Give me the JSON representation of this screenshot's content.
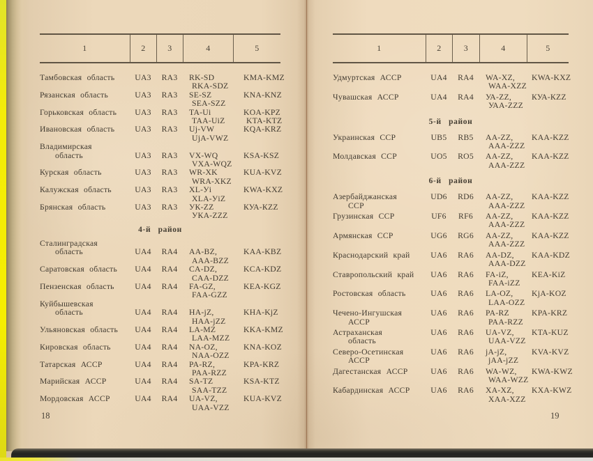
{
  "book": {
    "left_page": {
      "page_number": "18",
      "columns": [
        "1",
        "2",
        "3",
        "4",
        "5"
      ],
      "sections": [
        {
          "title": "",
          "rows": [
            {
              "name": "Тамбовская область",
              "col2": "UA3",
              "col3": "RA3",
              "col4": [
                "RK-SD",
                "RKA-SDZ"
              ],
              "col5": [
                "KMA-KMZ"
              ]
            },
            {
              "name": "Рязанская область",
              "col2": "UA3",
              "col3": "RA3",
              "col4": [
                "SE-SZ",
                "SEA-SZZ"
              ],
              "col5": [
                "KNA-KNZ"
              ]
            },
            {
              "name": "Горьковская область",
              "col2": "UA3",
              "col3": "RA3",
              "col4": [
                "TA-Ui",
                "TAA-UiZ"
              ],
              "col5": [
                "KOA-KPZ",
                "KTA-KTZ"
              ]
            },
            {
              "name": "Ивановская область",
              "col2": "UA3",
              "col3": "RA3",
              "col4": [
                "Uj-VW",
                "UjA-VWZ"
              ],
              "col5": [
                "KQA-KRZ"
              ]
            },
            {
              "name": [
                "Владимирская",
                "область"
              ],
              "values_on_line2": true,
              "col2": "UA3",
              "col3": "RA3",
              "col4": [
                "VX-WQ",
                "VXA-WQZ"
              ],
              "col5": [
                "KSA-KSZ"
              ]
            },
            {
              "name": "Курская область",
              "col2": "UA3",
              "col3": "RA3",
              "col4": [
                "WR-XK",
                "WRA-XKZ"
              ],
              "col5": [
                "KUA-KVZ"
              ]
            },
            {
              "name": "Калужская область",
              "col2": "UA3",
              "col3": "RA3",
              "col4": [
                "XL-Уi",
                "XLA-УiZ"
              ],
              "col5": [
                "KWA-KXZ"
              ]
            },
            {
              "name": "Брянская область",
              "col2": "UA3",
              "col3": "RA3",
              "col4": [
                "УК-ZZ",
                "УКА-ZZZ"
              ],
              "col5": [
                "КУА-КZZ"
              ]
            }
          ]
        },
        {
          "title": "4-й район",
          "rows": [
            {
              "name": [
                "Сталинградская",
                "область"
              ],
              "values_on_line2": true,
              "col2": "UA4",
              "col3": "RA4",
              "col4": [
                "AA-BZ,",
                "AAA-BZZ"
              ],
              "col5": [
                "KAA-KBZ"
              ]
            },
            {
              "name": "Саратовская область",
              "col2": "UA4",
              "col3": "RA4",
              "col4": [
                "CA-DZ,",
                "CAA-DZZ"
              ],
              "col5": [
                "KCA-KDZ"
              ]
            },
            {
              "name": "Пензенская область",
              "col2": "UA4",
              "col3": "RA4",
              "col4": [
                "FA-GZ,",
                "FAA-GZZ"
              ],
              "col5": [
                "KEA-KGZ"
              ]
            },
            {
              "name": [
                "Куйбышевская",
                "область"
              ],
              "values_on_line2": true,
              "col2": "UA4",
              "col3": "RA4",
              "col4": [
                "HA-jZ,",
                "HAA-jZZ"
              ],
              "col5": [
                "KHA-KjZ"
              ]
            },
            {
              "name": "Ульяновская область",
              "col2": "UA4",
              "col3": "RA4",
              "col4": [
                "LA-MZ",
                "LAA-MZZ"
              ],
              "col5": [
                "KKA-KMZ"
              ]
            },
            {
              "name": "Кировская область",
              "col2": "UA4",
              "col3": "RA4",
              "col4": [
                "NA-OZ,",
                "NAA-OZZ"
              ],
              "col5": [
                "KNA-KOZ"
              ]
            },
            {
              "name": "Татарская АССР",
              "col2": "UA4",
              "col3": "RA4",
              "col4": [
                "PA-RZ,",
                "PAA-RZZ"
              ],
              "col5": [
                "KPA-KRZ"
              ]
            },
            {
              "name": "Марийская АССР",
              "col2": "UA4",
              "col3": "RA4",
              "col4": [
                "SA-TZ",
                "SAA-TZZ"
              ],
              "col5": [
                "KSA-KTZ"
              ]
            },
            {
              "name": "Мордовская АССР",
              "col2": "UA4",
              "col3": "RA4",
              "col4": [
                "UA-VZ,",
                "UAA-VZZ"
              ],
              "col5": [
                "KUA-KVZ"
              ]
            }
          ]
        }
      ]
    },
    "right_page": {
      "page_number": "19",
      "columns": [
        "1",
        "2",
        "3",
        "4",
        "5"
      ],
      "sections": [
        {
          "title": "",
          "rows": [
            {
              "name": "Удмуртская АССР",
              "col2": "UA4",
              "col3": "RA4",
              "col4": [
                "WA-XZ,",
                "WAA-XZZ"
              ],
              "col5": [
                "KWA-KXZ"
              ]
            },
            {
              "name": "Чувашская АССР",
              "col2": "UA4",
              "col3": "RA4",
              "col4": [
                "УА-ZZ,",
                "УАА-ZZZ"
              ],
              "col5": [
                "КУА-КZZ"
              ]
            }
          ]
        },
        {
          "title": "5-й район",
          "rows": [
            {
              "name": "Украинская ССР",
              "col2": "UB5",
              "col3": "RB5",
              "col4": [
                "AA-ZZ,",
                "AAA-ZZZ"
              ],
              "col5": [
                "KAA-KZZ"
              ]
            },
            {
              "name": "Молдавская ССР",
              "col2": "UO5",
              "col3": "RO5",
              "col4": [
                "AA-ZZ,",
                "AAA-ZZZ"
              ],
              "col5": [
                "KAA-KZZ"
              ]
            }
          ]
        },
        {
          "title": "6-й район",
          "rows": [
            {
              "name": [
                "Азербайджанская",
                "ССР"
              ],
              "col2": "UD6",
              "col3": "RD6",
              "col4": [
                "AA-ZZ,",
                "AAA-ZZZ"
              ],
              "col5": [
                "KAA-KZZ"
              ]
            },
            {
              "name": "Грузинская ССР",
              "col2": "UF6",
              "col3": "RF6",
              "col4": [
                "AA-ZZ,",
                "AAA-ZZZ"
              ],
              "col5": [
                "KAA-KZZ"
              ]
            },
            {
              "name": "Армянская ССР",
              "col2": "UG6",
              "col3": "RG6",
              "col4": [
                "AA-ZZ,",
                "AAA-ZZZ"
              ],
              "col5": [
                "KAA-KZZ"
              ]
            },
            {
              "name": "Краснодарский край",
              "col2": "UA6",
              "col3": "RA6",
              "col4": [
                "AA-DZ,",
                "AAA-DZZ"
              ],
              "col5": [
                "KAA-KDZ"
              ]
            },
            {
              "name": "Ставропольский край",
              "col2": "UA6",
              "col3": "RA6",
              "col4": [
                "FA-iZ,",
                "FAA-iZZ"
              ],
              "col5": [
                "KEA-KiZ"
              ]
            },
            {
              "name": "Ростовская область",
              "col2": "UA6",
              "col3": "RA6",
              "col4": [
                "LA-OZ,",
                "LAA-OZZ"
              ],
              "col5": [
                "KjA-KOZ"
              ]
            },
            {
              "name": [
                "Чечено-Ингушская",
                "АССР"
              ],
              "col2": "UA6",
              "col3": "RA6",
              "col4": [
                "PA-RZ",
                "PAA-RZZ"
              ],
              "col5": [
                "KPA-KRZ"
              ]
            },
            {
              "name": [
                "Астраханская",
                "область"
              ],
              "col2": "UA6",
              "col3": "RA6",
              "col4": [
                "UA-VZ,",
                "UAA-VZZ"
              ],
              "col5": [
                "KTA-KUZ"
              ]
            },
            {
              "name": [
                "Северо-Осетинская",
                "АССР"
              ],
              "col2": "UA6",
              "col3": "RA6",
              "col4": [
                "jA-jZ,",
                "jAA-jZZ"
              ],
              "col5": [
                "KVA-KVZ"
              ]
            },
            {
              "name": "Дагестанская АССР",
              "col2": "UA6",
              "col3": "RA6",
              "col4": [
                "WA-WZ,",
                "WAA-WZZ"
              ],
              "col5": [
                "KWA-KWZ"
              ]
            },
            {
              "name": "Кабардинская АССР",
              "col2": "UA6",
              "col3": "RA6",
              "col4": [
                "XA-XZ,",
                "XAA-XZZ"
              ],
              "col5": [
                "KXA-KWZ"
              ]
            }
          ]
        }
      ]
    },
    "colors": {
      "paper": "#ebd7b9",
      "ink": "#423b31",
      "cover_edge_yellow": "#f4ec08",
      "bottom_shadow": "#2b2a25"
    }
  }
}
